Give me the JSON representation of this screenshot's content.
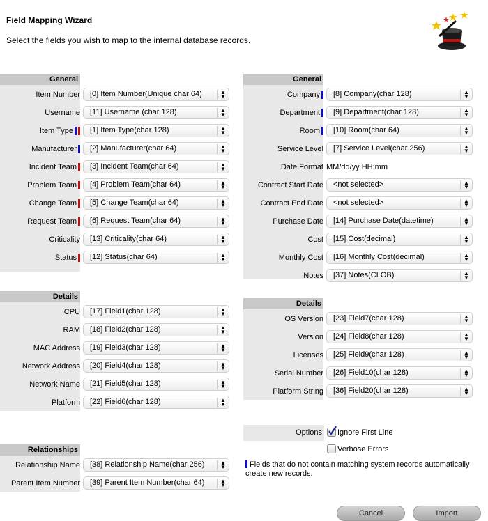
{
  "header": {
    "title": "Field Mapping Wizard",
    "subtitle": "Select the fields you wish to map to the internal database records."
  },
  "colors": {
    "blue_marker": "#1010c0",
    "red_marker": "#c01010"
  },
  "left_general": {
    "title": "General",
    "rows": [
      {
        "label": "Item Number",
        "value": "[0] Item Number(Unique char 64)",
        "markers": []
      },
      {
        "label": "Username",
        "value": "[11] Username (char 128)",
        "markers": []
      },
      {
        "label": "Item Type",
        "value": "[1] Item Type(char 128)",
        "markers": [
          "blue",
          "red"
        ]
      },
      {
        "label": "Manufacturer",
        "value": "[2] Manufacturer(char 64)",
        "markers": [
          "blue"
        ]
      },
      {
        "label": "Incident Team",
        "value": "[3] Incident Team(char 64)",
        "markers": [
          "red"
        ]
      },
      {
        "label": "Problem Team",
        "value": "[4] Problem Team(char 64)",
        "markers": [
          "red"
        ]
      },
      {
        "label": "Change Team",
        "value": "[5] Change Team(char 64)",
        "markers": [
          "red"
        ]
      },
      {
        "label": "Request Team",
        "value": "[6] Request Team(char 64)",
        "markers": [
          "red"
        ]
      },
      {
        "label": "Criticality",
        "value": "[13] Criticality(char 64)",
        "markers": []
      },
      {
        "label": "Status",
        "value": "[12] Status(char 64)",
        "markers": [
          "red"
        ]
      }
    ]
  },
  "left_details": {
    "title": "Details",
    "rows": [
      {
        "label": "CPU",
        "value": "[17] Field1(char 128)",
        "markers": []
      },
      {
        "label": "RAM",
        "value": "[18] Field2(char 128)",
        "markers": []
      },
      {
        "label": "MAC Address",
        "value": "[19] Field3(char 128)",
        "markers": []
      },
      {
        "label": "Network Address",
        "value": "[20] Field4(char 128)",
        "markers": []
      },
      {
        "label": "Network Name",
        "value": "[21] Field5(char 128)",
        "markers": []
      },
      {
        "label": "Platform",
        "value": "[22] Field6(char 128)",
        "markers": []
      }
    ]
  },
  "left_relationships": {
    "title": "Relationships",
    "rows": [
      {
        "label": "Relationship Name",
        "value": "[38] Relationship Name(char 256)",
        "markers": []
      },
      {
        "label": "Parent Item Number",
        "value": "[39] Parent Item Number(char 64)",
        "markers": []
      }
    ]
  },
  "right_general": {
    "title": "General",
    "rows": [
      {
        "label": "Company",
        "value": "[8] Company(char 128)",
        "markers": [
          "blue"
        ]
      },
      {
        "label": "Department",
        "value": "[9] Department(char 128)",
        "markers": [
          "blue"
        ]
      },
      {
        "label": "Room",
        "value": "[10] Room(char 64)",
        "markers": [
          "blue"
        ]
      },
      {
        "label": "Service Level",
        "value": "[7] Service Level(char 256)",
        "markers": []
      },
      {
        "label": "Date Format",
        "value": "MM/dd/yy HH:mm",
        "markers": [],
        "text": true
      },
      {
        "label": "Contract Start Date",
        "value": "<not selected>",
        "markers": []
      },
      {
        "label": "Contract End Date",
        "value": "<not selected>",
        "markers": []
      },
      {
        "label": "Purchase Date",
        "value": "[14] Purchase Date(datetime)",
        "markers": []
      },
      {
        "label": "Cost",
        "value": "[15] Cost(decimal)",
        "markers": []
      },
      {
        "label": "Monthly Cost",
        "value": "[16] Monthly Cost(decimal)",
        "markers": []
      },
      {
        "label": "Notes",
        "value": "[37] Notes(CLOB)",
        "markers": []
      }
    ]
  },
  "right_details": {
    "title": "Details",
    "rows": [
      {
        "label": "OS Version",
        "value": "[23] Field7(char 128)",
        "markers": []
      },
      {
        "label": "Version",
        "value": "[24] Field8(char 128)",
        "markers": []
      },
      {
        "label": "Licenses",
        "value": "[25] Field9(char 128)",
        "markers": []
      },
      {
        "label": "Serial Number",
        "value": "[26] Field10(char 128)",
        "markers": []
      },
      {
        "label": "Platform String",
        "value": "[36] Field20(char 128)",
        "markers": []
      }
    ]
  },
  "options": {
    "label": "Options",
    "ignore_first_line": {
      "label": "Ignore First Line",
      "checked": true
    },
    "verbose_errors": {
      "label": "Verbose Errors",
      "checked": false
    }
  },
  "note": "Fields that do not contain matching system records automatically create new records.",
  "buttons": {
    "cancel": "Cancel",
    "import": "Import"
  }
}
